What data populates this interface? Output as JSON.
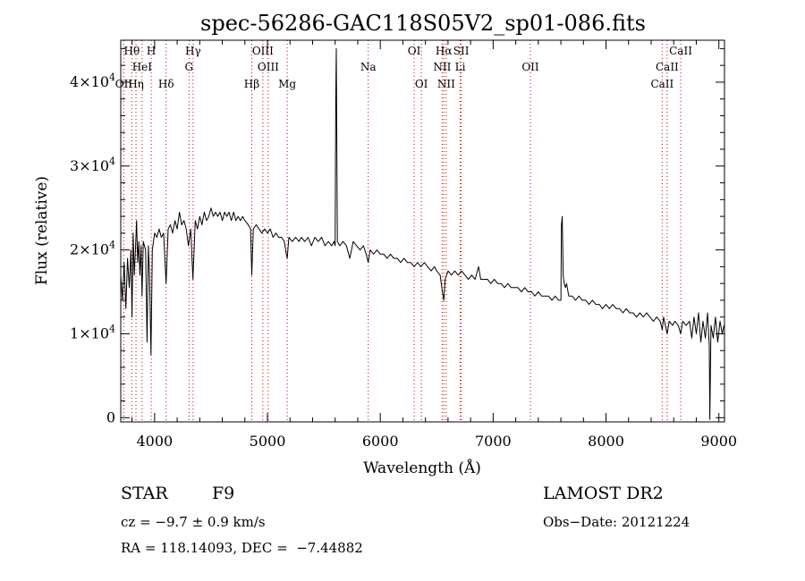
{
  "chart_data": {
    "type": "line",
    "title": "spec-56286-GAC118S05V2_sp01-086.fits",
    "xlabel": "Wavelength (Å)",
    "ylabel": "Flux (relative)",
    "xlim": [
      3700,
      9050
    ],
    "ylim": [
      -500,
      45000
    ],
    "x_ticks": [
      4000,
      5000,
      6000,
      7000,
      8000,
      9000
    ],
    "x_tick_labels": [
      "4000",
      "5000",
      "6000",
      "7000",
      "8000",
      "9000"
    ],
    "y_ticks": [
      0,
      10000,
      20000,
      30000,
      40000
    ],
    "y_tick_labels": [
      {
        "mant": "0",
        "exp": ""
      },
      {
        "mant": "1×10",
        "exp": "4"
      },
      {
        "mant": "2×10",
        "exp": "4"
      },
      {
        "mant": "3×10",
        "exp": "4"
      },
      {
        "mant": "4×10",
        "exp": "4"
      }
    ],
    "grid": false,
    "line_color": "#000000",
    "line_marker_color": "#cc0000",
    "series": [
      {
        "values": [
          [
            3700,
            17000
          ],
          [
            3715,
            14000
          ],
          [
            3730,
            18500
          ],
          [
            3745,
            13000
          ],
          [
            3760,
            19000
          ],
          [
            3775,
            15500
          ],
          [
            3790,
            20000
          ],
          [
            3800,
            12000
          ],
          [
            3810,
            22000
          ],
          [
            3820,
            17000
          ],
          [
            3830,
            20000
          ],
          [
            3840,
            23500
          ],
          [
            3850,
            18500
          ],
          [
            3860,
            21000
          ],
          [
            3870,
            17000
          ],
          [
            3880,
            20500
          ],
          [
            3889,
            14500
          ],
          [
            3900,
            21000
          ],
          [
            3920,
            20000
          ],
          [
            3933,
            9000
          ],
          [
            3945,
            20500
          ],
          [
            3955,
            17000
          ],
          [
            3968,
            7500
          ],
          [
            3980,
            20000
          ],
          [
            4000,
            22000
          ],
          [
            4020,
            21500
          ],
          [
            4040,
            22500
          ],
          [
            4060,
            21500
          ],
          [
            4080,
            22000
          ],
          [
            4102,
            16000
          ],
          [
            4120,
            22500
          ],
          [
            4140,
            23000
          ],
          [
            4160,
            22000
          ],
          [
            4180,
            23500
          ],
          [
            4200,
            22500
          ],
          [
            4220,
            24500
          ],
          [
            4240,
            23000
          ],
          [
            4260,
            23500
          ],
          [
            4280,
            22500
          ],
          [
            4300,
            20500
          ],
          [
            4320,
            22500
          ],
          [
            4340,
            16500
          ],
          [
            4360,
            23500
          ],
          [
            4380,
            22500
          ],
          [
            4400,
            24000
          ],
          [
            4420,
            23000
          ],
          [
            4440,
            24500
          ],
          [
            4460,
            23500
          ],
          [
            4480,
            24000
          ],
          [
            4500,
            25000
          ],
          [
            4520,
            24000
          ],
          [
            4540,
            24500
          ],
          [
            4560,
            24000
          ],
          [
            4580,
            24500
          ],
          [
            4600,
            23500
          ],
          [
            4620,
            24500
          ],
          [
            4640,
            24000
          ],
          [
            4660,
            24500
          ],
          [
            4680,
            23500
          ],
          [
            4700,
            24500
          ],
          [
            4720,
            23500
          ],
          [
            4740,
            24000
          ],
          [
            4760,
            23500
          ],
          [
            4780,
            24000
          ],
          [
            4800,
            23500
          ],
          [
            4830,
            23000
          ],
          [
            4850,
            22500
          ],
          [
            4861,
            17000
          ],
          [
            4875,
            22500
          ],
          [
            4900,
            23000
          ],
          [
            4925,
            22500
          ],
          [
            4950,
            22000
          ],
          [
            4975,
            22500
          ],
          [
            5000,
            22000
          ],
          [
            5025,
            22500
          ],
          [
            5050,
            21500
          ],
          [
            5075,
            22000
          ],
          [
            5100,
            21500
          ],
          [
            5125,
            21500
          ],
          [
            5150,
            21000
          ],
          [
            5167,
            19500
          ],
          [
            5175,
            19000
          ],
          [
            5190,
            21500
          ],
          [
            5220,
            21000
          ],
          [
            5250,
            21500
          ],
          [
            5280,
            21000
          ],
          [
            5300,
            21500
          ],
          [
            5330,
            21000
          ],
          [
            5360,
            21500
          ],
          [
            5390,
            20500
          ],
          [
            5420,
            21500
          ],
          [
            5450,
            21000
          ],
          [
            5480,
            21500
          ],
          [
            5510,
            20500
          ],
          [
            5540,
            21000
          ],
          [
            5570,
            20500
          ],
          [
            5590,
            21000
          ],
          [
            5600,
            20500
          ],
          [
            5605,
            38000
          ],
          [
            5610,
            44000
          ],
          [
            5615,
            32000
          ],
          [
            5620,
            21000
          ],
          [
            5640,
            20500
          ],
          [
            5670,
            21000
          ],
          [
            5700,
            20500
          ],
          [
            5730,
            19000
          ],
          [
            5760,
            21000
          ],
          [
            5790,
            20500
          ],
          [
            5820,
            20000
          ],
          [
            5850,
            20500
          ],
          [
            5875,
            19500
          ],
          [
            5893,
            18500
          ],
          [
            5910,
            20000
          ],
          [
            5940,
            19500
          ],
          [
            5970,
            20000
          ],
          [
            6000,
            19500
          ],
          [
            6030,
            19500
          ],
          [
            6060,
            19000
          ],
          [
            6090,
            19500
          ],
          [
            6120,
            19000
          ],
          [
            6150,
            19000
          ],
          [
            6180,
            18500
          ],
          [
            6210,
            19000
          ],
          [
            6240,
            18500
          ],
          [
            6270,
            18500
          ],
          [
            6300,
            18000
          ],
          [
            6330,
            18500
          ],
          [
            6360,
            18000
          ],
          [
            6390,
            18500
          ],
          [
            6420,
            18000
          ],
          [
            6450,
            17500
          ],
          [
            6480,
            18000
          ],
          [
            6500,
            17500
          ],
          [
            6530,
            17000
          ],
          [
            6550,
            15000
          ],
          [
            6563,
            14000
          ],
          [
            6575,
            16500
          ],
          [
            6600,
            17500
          ],
          [
            6630,
            17000
          ],
          [
            6660,
            17500
          ],
          [
            6690,
            17000
          ],
          [
            6720,
            17500
          ],
          [
            6750,
            17000
          ],
          [
            6780,
            16500
          ],
          [
            6810,
            17000
          ],
          [
            6840,
            16500
          ],
          [
            6860,
            17500
          ],
          [
            6870,
            18000
          ],
          [
            6890,
            16500
          ],
          [
            6920,
            16500
          ],
          [
            6950,
            16500
          ],
          [
            6980,
            16000
          ],
          [
            7010,
            16500
          ],
          [
            7040,
            16000
          ],
          [
            7070,
            16000
          ],
          [
            7100,
            15500
          ],
          [
            7130,
            16000
          ],
          [
            7160,
            15500
          ],
          [
            7190,
            15500
          ],
          [
            7220,
            15500
          ],
          [
            7250,
            15000
          ],
          [
            7280,
            15500
          ],
          [
            7310,
            15000
          ],
          [
            7340,
            15000
          ],
          [
            7370,
            14500
          ],
          [
            7400,
            15000
          ],
          [
            7430,
            14500
          ],
          [
            7460,
            14500
          ],
          [
            7490,
            14500
          ],
          [
            7520,
            14000
          ],
          [
            7550,
            14500
          ],
          [
            7580,
            14000
          ],
          [
            7600,
            14000
          ],
          [
            7605,
            23000
          ],
          [
            7612,
            24000
          ],
          [
            7620,
            17000
          ],
          [
            7630,
            16000
          ],
          [
            7640,
            15500
          ],
          [
            7650,
            16000
          ],
          [
            7670,
            14500
          ],
          [
            7700,
            14500
          ],
          [
            7730,
            14000
          ],
          [
            7760,
            14500
          ],
          [
            7790,
            14000
          ],
          [
            7820,
            14000
          ],
          [
            7850,
            13500
          ],
          [
            7880,
            14000
          ],
          [
            7910,
            13500
          ],
          [
            7940,
            13500
          ],
          [
            7970,
            13000
          ],
          [
            8000,
            13500
          ],
          [
            8030,
            13000
          ],
          [
            8060,
            13500
          ],
          [
            8090,
            13000
          ],
          [
            8120,
            13000
          ],
          [
            8150,
            12500
          ],
          [
            8180,
            13000
          ],
          [
            8210,
            12500
          ],
          [
            8240,
            12500
          ],
          [
            8270,
            12000
          ],
          [
            8300,
            12500
          ],
          [
            8330,
            12000
          ],
          [
            8360,
            12500
          ],
          [
            8390,
            12000
          ],
          [
            8420,
            11500
          ],
          [
            8450,
            12000
          ],
          [
            8480,
            11500
          ],
          [
            8498,
            10500
          ],
          [
            8510,
            12000
          ],
          [
            8542,
            10000
          ],
          [
            8560,
            11500
          ],
          [
            8590,
            11000
          ],
          [
            8610,
            11500
          ],
          [
            8640,
            11000
          ],
          [
            8662,
            10000
          ],
          [
            8680,
            11500
          ],
          [
            8710,
            11000
          ],
          [
            8740,
            11500
          ],
          [
            8760,
            9500
          ],
          [
            8780,
            12000
          ],
          [
            8800,
            10000
          ],
          [
            8820,
            12500
          ],
          [
            8840,
            9000
          ],
          [
            8860,
            11500
          ],
          [
            8880,
            9500
          ],
          [
            8900,
            12500
          ],
          [
            8915,
            8500
          ],
          [
            8920,
            -200
          ],
          [
            8930,
            11000
          ],
          [
            8950,
            9500
          ],
          [
            8970,
            12000
          ],
          [
            8990,
            9000
          ],
          [
            9010,
            11500
          ],
          [
            9030,
            10000
          ],
          [
            9045,
            11000
          ]
        ]
      }
    ],
    "lines": [
      {
        "name": "Hθ",
        "wave": 3798,
        "row": 0
      },
      {
        "name": "H",
        "wave": 3970,
        "row": 0
      },
      {
        "name": "Hγ",
        "wave": 4341,
        "row": 0
      },
      {
        "name": "OIII",
        "wave": 4959,
        "row": 0
      },
      {
        "name": "OI",
        "wave": 6300,
        "row": 0
      },
      {
        "name": "Hα",
        "wave": 6563,
        "row": 0
      },
      {
        "name": "SII",
        "wave": 6717,
        "row": 0
      },
      {
        "name": "CaII",
        "wave": 8662,
        "row": 0
      },
      {
        "name": "HeI",
        "wave": 3889,
        "row": 1
      },
      {
        "name": "G",
        "wave": 4305,
        "row": 1
      },
      {
        "name": "OIII",
        "wave": 5007,
        "row": 1
      },
      {
        "name": "Na",
        "wave": 5893,
        "row": 1
      },
      {
        "name": "NII",
        "wave": 6548,
        "row": 1
      },
      {
        "name": "Li",
        "wave": 6708,
        "row": 1
      },
      {
        "name": "OII",
        "wave": 7330,
        "row": 1
      },
      {
        "name": "CaII",
        "wave": 8542,
        "row": 1
      },
      {
        "name": "OII",
        "wave": 3727,
        "row": 2
      },
      {
        "name": "Hη",
        "wave": 3835,
        "row": 2
      },
      {
        "name": "Hδ",
        "wave": 4102,
        "row": 2
      },
      {
        "name": "Hβ",
        "wave": 4861,
        "row": 2
      },
      {
        "name": "Mg",
        "wave": 5175,
        "row": 2
      },
      {
        "name": "OI",
        "wave": 6364,
        "row": 2
      },
      {
        "name": "NII",
        "wave": 6584,
        "row": 2
      },
      {
        "name": "CaII",
        "wave": 8498,
        "row": 2
      }
    ]
  },
  "info": {
    "class_label": "STAR",
    "subclass": "F9",
    "cz": "cz = −9.7 ± 0.9 km/s",
    "coords": "RA = 118.14093, DEC =  −7.44882",
    "survey": "LAMOST DR2",
    "obs_date": "Obs−Date: 20121224"
  }
}
